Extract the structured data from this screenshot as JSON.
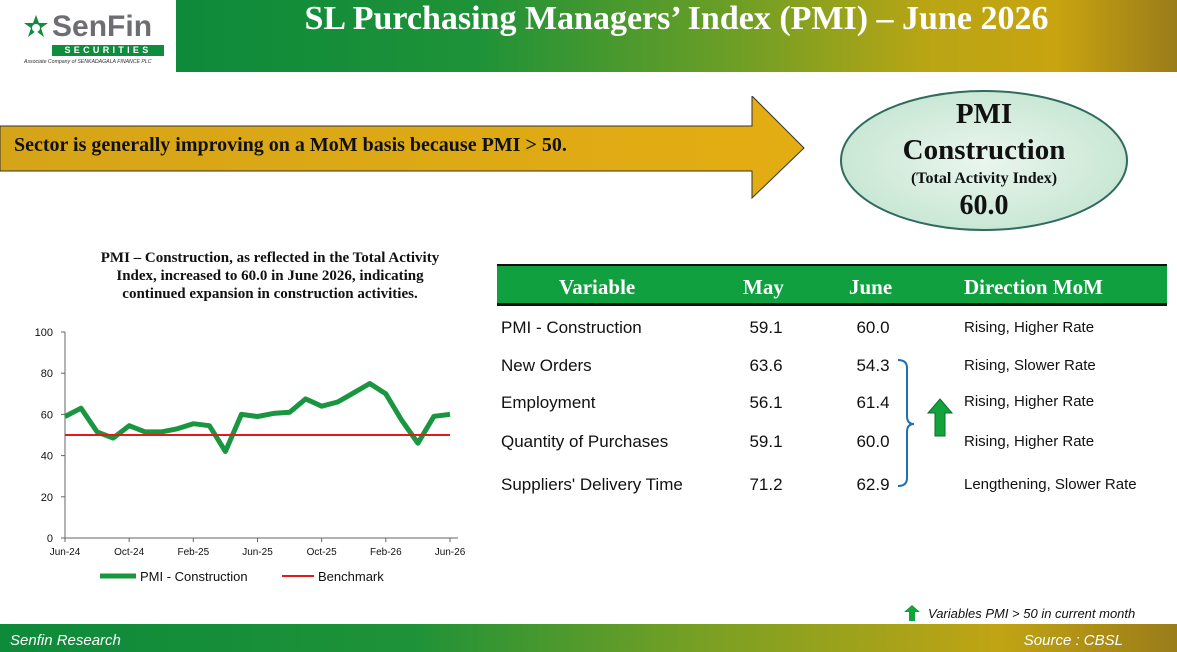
{
  "logo": {
    "brand_a": "Sen",
    "brand_b": "Fin",
    "bar": "SECURITIES",
    "sub": "Associate Company of  SENKADAGALA FINANCE PLC"
  },
  "header": {
    "title": "SL Purchasing Managers’ Index (PMI) – June 2026"
  },
  "callout": {
    "text": "Sector is generally improving  on a MoM basis because PMI > 50."
  },
  "summary": {
    "line1": "PMI",
    "line2": "Construction",
    "line3": "(Total Activity Index)",
    "value": "60.0"
  },
  "chart_desc": "PMI – Construction, as reflected in the Total Activity Index, increased to 60.0 in June 2026, indicating continued expansion in construction activities.",
  "chart_data": {
    "type": "line",
    "ylim": [
      0,
      100
    ],
    "yticks": [
      "0",
      "20",
      "40",
      "60",
      "80",
      "100"
    ],
    "xtick_labels": [
      "Jun-24",
      "Oct-24",
      "Feb-25",
      "Jun-25",
      "Oct-25",
      "Feb-26",
      "Jun-26"
    ],
    "x_months": [
      "Jun-24",
      "Jul-24",
      "Aug-24",
      "Sep-24",
      "Oct-24",
      "Nov-24",
      "Dec-24",
      "Jan-25",
      "Feb-25",
      "Mar-25",
      "Apr-25",
      "May-25",
      "Jun-25",
      "Jul-25",
      "Aug-25",
      "Sep-25",
      "Oct-25",
      "Nov-25",
      "Dec-25",
      "Jan-26",
      "Feb-26",
      "Mar-26",
      "Apr-26",
      "May-26",
      "Jun-26"
    ],
    "series": [
      {
        "name": "PMI - Construction",
        "color": "#1a9641",
        "values": [
          59.0,
          63.0,
          51.5,
          48.5,
          54.5,
          51.5,
          51.5,
          53.0,
          55.5,
          54.5,
          42.0,
          60.0,
          59.0,
          60.5,
          61.0,
          67.5,
          64.0,
          66.0,
          70.5,
          75.0,
          70.0,
          57.0,
          46.0,
          59.1,
          60.0
        ]
      },
      {
        "name": "Benchmark",
        "color": "#e31a1c",
        "values": [
          50,
          50,
          50,
          50,
          50,
          50,
          50,
          50,
          50,
          50,
          50,
          50,
          50,
          50,
          50,
          50,
          50,
          50,
          50,
          50,
          50,
          50,
          50,
          50,
          50
        ]
      }
    ],
    "legend": "bottom"
  },
  "table": {
    "headers": [
      "Variable",
      "May",
      "June",
      "Direction MoM"
    ],
    "rows": [
      {
        "variable": "PMI - Construction",
        "may": "59.1",
        "june": "60.0",
        "direction": "Rising, Higher Rate"
      },
      {
        "variable": "New Orders",
        "may": "63.6",
        "june": "54.3",
        "direction": "Rising, Slower Rate"
      },
      {
        "variable": "Employment",
        "may": "56.1",
        "june": "61.4",
        "direction": "Rising, Higher Rate"
      },
      {
        "variable": "Quantity of Purchases",
        "may": "59.1",
        "june": "60.0",
        "direction": "Rising, Higher Rate"
      },
      {
        "variable": "Suppliers' Delivery Time",
        "may": "71.2",
        "june": "62.9",
        "direction": "Lengthening, Slower Rate"
      }
    ]
  },
  "note": "Variables PMI > 50 in current month",
  "footer": {
    "left": "Senfin Research",
    "right": "Source : CBSL"
  },
  "colors": {
    "green": "#0d8a3a",
    "gold": "#d4a514",
    "ellipse": "#c9e8d4",
    "benchmark": "#e31a1c"
  },
  "icons": {
    "up_arrow": "green-up-arrow-icon"
  }
}
